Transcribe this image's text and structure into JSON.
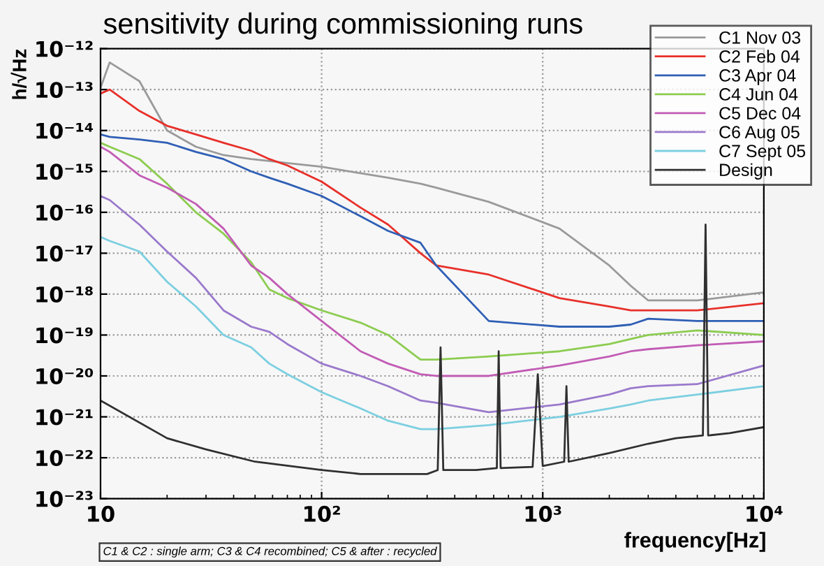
{
  "chart_data": {
    "type": "line",
    "title": "sensitivity during commissioning runs",
    "xlabel": "frequency[Hz]",
    "ylabel": "h/√Hz",
    "log": "xy",
    "grid": true,
    "legend": "top right",
    "line_style": "solid",
    "marker": "none",
    "xlim": [
      10,
      10000
    ],
    "ylim": [
      1e-23,
      1e-12
    ],
    "xticks": [
      {
        "value": 10,
        "label": "10"
      },
      {
        "value": 100,
        "label": "10²"
      },
      {
        "value": 1000,
        "label": "10³"
      },
      {
        "value": 10000,
        "label": "10⁴"
      }
    ],
    "yticks": [
      {
        "value": 1e-23,
        "label": "10⁻²³"
      },
      {
        "value": 1e-22,
        "label": "10⁻²²"
      },
      {
        "value": 1e-21,
        "label": "10⁻²¹"
      },
      {
        "value": 1e-20,
        "label": "10⁻²⁰"
      },
      {
        "value": 1e-19,
        "label": "10⁻¹⁹"
      },
      {
        "value": 1e-18,
        "label": "10⁻¹⁸"
      },
      {
        "value": 1e-17,
        "label": "10⁻¹⁷"
      },
      {
        "value": 1e-16,
        "label": "10⁻¹⁶"
      },
      {
        "value": 1e-15,
        "label": "10⁻¹⁵"
      },
      {
        "value": 1e-14,
        "label": "10⁻¹⁴"
      },
      {
        "value": 1e-13,
        "label": "10⁻¹³"
      },
      {
        "value": 1e-12,
        "label": "10⁻¹²"
      }
    ],
    "annotations": [
      "C1 & C2 : single arm; C3 & C4 recombined; C5 & after : recycled"
    ],
    "x": [
      10,
      11,
      15,
      20,
      27,
      36,
      48,
      58,
      70,
      100,
      150,
      200,
      280,
      330,
      570,
      1190,
      2000,
      2500,
      3000,
      5000,
      10000
    ],
    "series": [
      {
        "name": "C1 Nov 03",
        "color": "#9a9a9a",
        "values": [
          1.1e-13,
          4.6e-13,
          1.6e-13,
          1e-14,
          4e-15,
          2.5e-15,
          2e-15,
          1.8e-15,
          1.6e-15,
          1.3e-15,
          9e-16,
          7e-16,
          5e-16,
          4e-16,
          1.8e-16,
          4e-17,
          5e-18,
          1.6e-18,
          7e-19,
          7e-19,
          1.1e-18
        ]
      },
      {
        "name": "C2 Feb 04",
        "color": "#e8302a",
        "values": [
          8e-14,
          1e-13,
          3e-14,
          1.3e-14,
          8e-15,
          5e-15,
          3.2e-15,
          2e-15,
          1.4e-15,
          5.6e-16,
          1.3e-16,
          5e-17,
          1e-17,
          5e-18,
          3e-18,
          8e-19,
          5e-19,
          4e-19,
          4e-19,
          4e-19,
          6e-19
        ]
      },
      {
        "name": "C3 Apr 04",
        "color": "#2f5fb5",
        "values": [
          8e-15,
          7e-15,
          6e-15,
          5e-15,
          3e-15,
          2e-15,
          1e-15,
          7e-16,
          5e-16,
          2.5e-16,
          8e-17,
          3.5e-17,
          1.8e-17,
          5e-18,
          2.2e-19,
          1.6e-19,
          1.6e-19,
          1.8e-19,
          2.5e-19,
          2.2e-19,
          2.2e-19
        ]
      },
      {
        "name": "C4 Jun 04",
        "color": "#8ccc50",
        "values": [
          5e-15,
          4e-15,
          2e-15,
          5e-16,
          1e-16,
          3e-17,
          6e-18,
          1.3e-18,
          8e-19,
          4e-19,
          2e-19,
          1e-19,
          2.5e-20,
          2.5e-20,
          3e-20,
          4e-20,
          6e-20,
          8e-20,
          1e-19,
          1.3e-19,
          1e-19
        ]
      },
      {
        "name": "C5 Dec 04",
        "color": "#c25cb5",
        "values": [
          4e-15,
          3e-15,
          8e-16,
          4e-16,
          1.6e-16,
          4e-17,
          5e-18,
          2.5e-18,
          1e-18,
          2.2e-19,
          4e-20,
          2e-20,
          1.1e-20,
          1e-20,
          1e-20,
          1.8e-20,
          3e-20,
          4e-20,
          4.5e-20,
          5.6e-20,
          7e-20
        ]
      },
      {
        "name": "C6 Aug 05",
        "color": "#9a79cc",
        "values": [
          2.5e-16,
          2e-16,
          5e-17,
          1.1e-17,
          2.5e-18,
          4e-19,
          1.6e-19,
          1.2e-19,
          6e-20,
          2e-20,
          1e-20,
          5.6e-21,
          2.5e-21,
          2.2e-21,
          1.3e-21,
          2e-21,
          3.5e-21,
          5e-21,
          5.6e-21,
          6.3e-21,
          1.8e-20
        ]
      },
      {
        "name": "C7 Sept 05",
        "color": "#7ccfe0",
        "values": [
          2.5e-17,
          2e-17,
          1.1e-17,
          2e-18,
          5e-19,
          1e-19,
          5e-20,
          2e-20,
          1.1e-20,
          4e-21,
          1.6e-21,
          8e-22,
          5e-22,
          5e-22,
          6.3e-22,
          1e-21,
          1.6e-21,
          2e-21,
          2.5e-21,
          3.5e-21,
          5.6e-21
        ]
      },
      {
        "name": "Design",
        "color": "#303030",
        "x": [
          10,
          20,
          30,
          50,
          100,
          150,
          200,
          300,
          335,
          345,
          355,
          500,
          620,
          632,
          645,
          900,
          950,
          1000,
          1250,
          1280,
          1310,
          2000,
          3000,
          4000,
          5300,
          5450,
          5600,
          7000,
          10000
        ],
        "values": [
          2.5e-21,
          3e-22,
          1.6e-22,
          8e-23,
          5e-23,
          4e-23,
          4e-23,
          4e-23,
          5e-23,
          5e-20,
          5e-23,
          5e-23,
          5.6e-23,
          4e-20,
          5.6e-23,
          6e-23,
          1.1e-20,
          6.3e-23,
          8e-23,
          5.6e-21,
          8e-23,
          1.3e-22,
          2.2e-22,
          3e-22,
          3.5e-22,
          5e-17,
          3.5e-22,
          4e-22,
          5.6e-22
        ]
      }
    ]
  }
}
